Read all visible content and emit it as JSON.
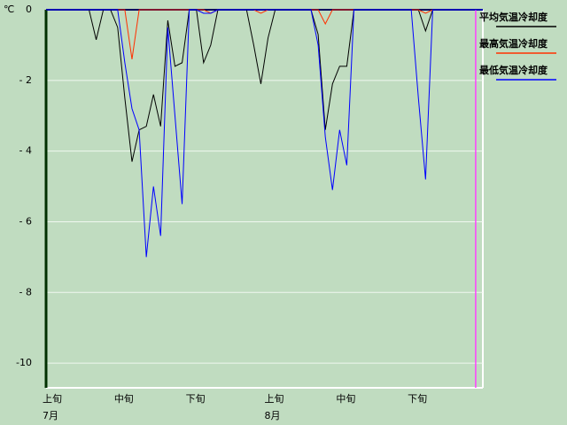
{
  "chart_data": {
    "type": "line",
    "y_unit": "℃",
    "x": [
      1,
      2,
      3,
      4,
      5,
      6,
      7,
      8,
      9,
      10,
      11,
      12,
      13,
      14,
      15,
      16,
      17,
      18,
      19,
      20,
      21,
      22,
      23,
      24,
      25,
      26,
      27,
      28,
      29,
      30,
      31,
      32,
      33,
      34,
      35,
      36,
      37,
      38,
      39,
      40,
      41,
      42,
      43,
      44,
      45,
      46,
      47,
      48,
      49,
      50,
      51,
      52,
      53,
      54,
      55,
      56,
      57,
      58,
      59,
      60,
      61,
      62
    ],
    "xlim": [
      1,
      62
    ],
    "xticks": [
      {
        "value": 1,
        "label": "上旬"
      },
      {
        "value": 11,
        "label": "中旬"
      },
      {
        "value": 21,
        "label": "下旬"
      },
      {
        "value": 32,
        "label": "上旬"
      },
      {
        "value": 42,
        "label": "中旬"
      },
      {
        "value": 52,
        "label": "下旬"
      }
    ],
    "x_groups": [
      {
        "value": 1,
        "label": "7月"
      },
      {
        "value": 32,
        "label": "8月"
      }
    ],
    "marker_x": 61,
    "marker_color": "#ff40ff",
    "ylim": [
      -10.7,
      0
    ],
    "yticks": [
      0,
      {
        "value": -2,
        "label": "- 2"
      },
      {
        "value": -4,
        "label": "- 4"
      },
      {
        "value": -6,
        "label": "- 6"
      },
      {
        "value": -8,
        "label": "- 8"
      },
      -10
    ],
    "grid": true,
    "series": [
      {
        "name": "平均気温冷却度",
        "color": "#000000",
        "values": [
          0,
          0,
          0,
          0,
          0,
          0,
          0,
          -0.85,
          0,
          0,
          -0.5,
          -2.5,
          -4.3,
          -3.4,
          -3.3,
          -2.4,
          -3.3,
          -0.3,
          -1.6,
          -1.5,
          0,
          0,
          -1.5,
          -1.0,
          0,
          0,
          0,
          0,
          0,
          -1.0,
          -2.1,
          -0.8,
          0,
          0,
          0,
          0,
          0,
          0,
          -0.7,
          -3.4,
          -2.1,
          -1.6,
          -1.6,
          0,
          0,
          0,
          0,
          0,
          0,
          0,
          0,
          0,
          0,
          -0.6,
          0,
          0,
          0,
          0,
          0,
          0,
          0,
          0
        ]
      },
      {
        "name": "最高気温冷却度",
        "color": "#ff3000",
        "values": [
          0,
          0,
          0,
          0,
          0,
          0,
          0,
          0,
          0,
          0,
          0,
          0,
          -1.4,
          0,
          0,
          0,
          0,
          0,
          0,
          0,
          0,
          0,
          0,
          -0.1,
          0,
          0,
          0,
          0,
          0,
          0,
          -0.1,
          0,
          0,
          0,
          0,
          0,
          0,
          0,
          0,
          -0.4,
          0,
          0,
          0,
          0,
          0,
          0,
          0,
          0,
          0,
          0,
          0,
          0,
          0,
          -0.1,
          0,
          0,
          0,
          0,
          0,
          0,
          0,
          0
        ]
      },
      {
        "name": "最低気温冷却度",
        "color": "#0000ff",
        "values": [
          0,
          0,
          0,
          0,
          0,
          0,
          0,
          0,
          0,
          0,
          0,
          -1.5,
          -2.8,
          -3.4,
          -7.0,
          -5.0,
          -6.4,
          -0.5,
          -3.0,
          -5.5,
          0,
          0,
          -0.1,
          -0.1,
          0,
          0,
          0,
          0,
          0,
          0,
          0,
          0,
          0,
          0,
          0,
          0,
          0,
          0,
          -1.0,
          -3.6,
          -5.1,
          -3.4,
          -4.4,
          0,
          0,
          0,
          0,
          0,
          0,
          0,
          0,
          0,
          -2.5,
          -4.8,
          0,
          0,
          0,
          0,
          0,
          0,
          0,
          0
        ]
      }
    ]
  }
}
